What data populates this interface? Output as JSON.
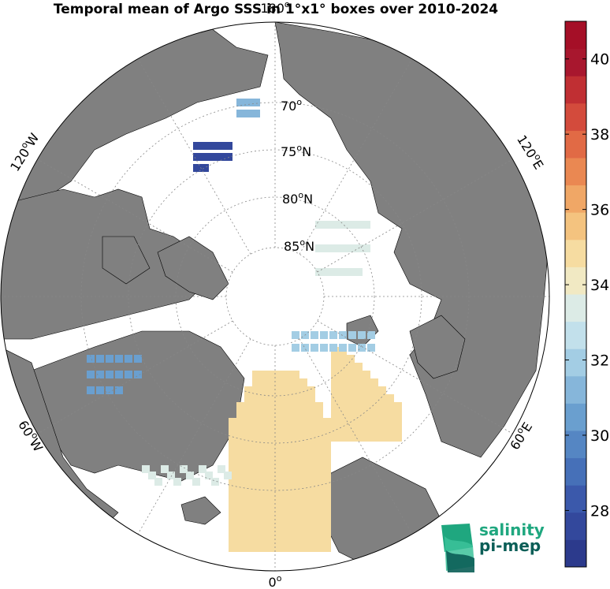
{
  "title": "Temporal mean of Argo SSS in 1°x1° boxes over 2010-2024",
  "map": {
    "projection": "north-polar-stereographic",
    "land_color": "#808080",
    "background_color": "#ffffff",
    "lat_labels": [
      "70",
      "75",
      "80",
      "85"
    ],
    "lat_suffix": "N",
    "lon_labels": {
      "top": "180",
      "upper_left": "120",
      "upper_left_suffix": "W",
      "upper_right": "120",
      "upper_right_suffix": "E",
      "lower_left": "60",
      "lower_left_suffix": "W",
      "lower_right": "60",
      "lower_right_suffix": "E",
      "bottom": "0"
    }
  },
  "colorbar": {
    "min": 26.5,
    "max": 41,
    "ticks": [
      "28",
      "30",
      "32",
      "34",
      "36",
      "38",
      "40"
    ],
    "colors": [
      "#2c3a8c",
      "#33489c",
      "#3b59ab",
      "#4670b8",
      "#5586c3",
      "#6a9fcf",
      "#86b6da",
      "#a3cde4",
      "#c2e0eb",
      "#dcebe6",
      "#f1e9c3",
      "#f6dca1",
      "#f4c37f",
      "#f0a766",
      "#ea8852",
      "#e16a45",
      "#d34b3c",
      "#c02f33",
      "#a8172e",
      "#a50f27"
    ]
  },
  "logo": {
    "line1": "salinity",
    "line2": "pi-mep"
  }
}
